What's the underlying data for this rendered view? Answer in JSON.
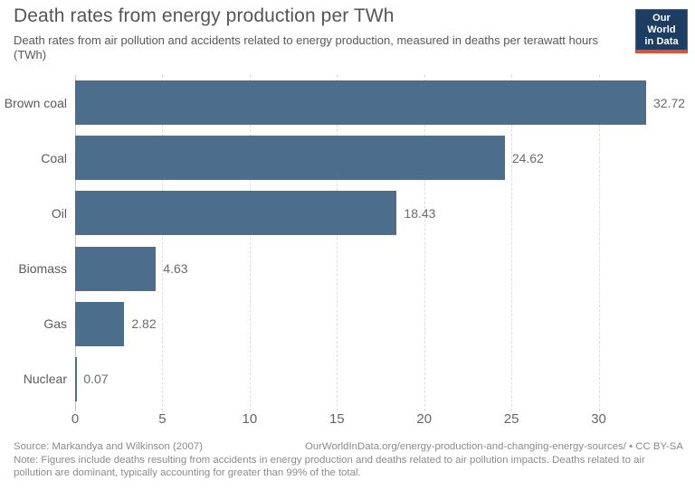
{
  "header": {
    "title": "Death rates from energy production per TWh",
    "subtitle": "Death rates from air pollution and accidents related to energy production, measured in deaths per terawatt hours (TWh)",
    "logo": {
      "line1": "Our World",
      "line2": "in Data",
      "bg_color": "#1d3d63",
      "stripe_color": "#e2502f"
    }
  },
  "chart_data": {
    "type": "bar",
    "orientation": "horizontal",
    "title": "Death rates from energy production per TWh",
    "xlabel": "",
    "ylabel": "",
    "categories": [
      "Brown coal",
      "Coal",
      "Oil",
      "Biomass",
      "Gas",
      "Nuclear"
    ],
    "values": [
      32.72,
      24.62,
      18.43,
      4.63,
      2.82,
      0.07
    ],
    "value_labels": [
      "32.72",
      "24.62",
      "18.43",
      "4.63",
      "2.82",
      "0.07"
    ],
    "xlim": [
      0,
      35
    ],
    "xticks": [
      0,
      5,
      10,
      15,
      20,
      25,
      30
    ],
    "grid": "vertical-dashed",
    "bar_color": "#4c6e8c",
    "unit": "deaths per TWh"
  },
  "footer": {
    "source": "Source: Markandya and Wilkinson (2007)",
    "citation": "OurWorldInData.org/energy-production-and-changing-energy-sources/ • CC BY-SA",
    "note": "Note: Figures include deaths resulting from accidents in energy production and deaths related to air pollution impacts. Deaths related to air pollution are dominant, typically accounting for greater than 99% of the total."
  }
}
